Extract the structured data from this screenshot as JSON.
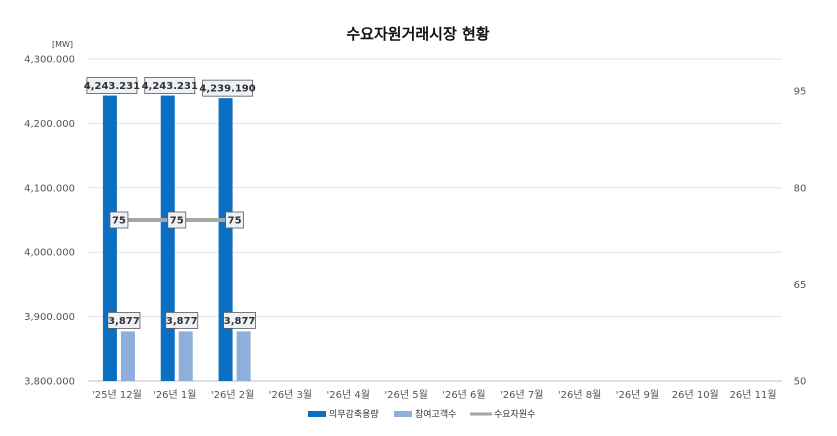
{
  "chart_data": {
    "type": "bar",
    "title": "수요자원거래시장 현황",
    "y_unit": "[MW]",
    "categories": [
      "'25년 12월",
      "'26년 1월",
      "'26년 2월",
      "'26년 3월",
      "'26년 4월",
      "'26년 5월",
      "'26년 6월",
      "'26년 7월",
      "'26년 8월",
      "'26년 9월",
      "26년 10월",
      "26년 11월"
    ],
    "ylim": [
      3800,
      4300
    ],
    "y_ticks": [
      "3,800.000",
      "3,900.000",
      "4,000.000",
      "4,100.000",
      "4,200.000",
      "4,300.000"
    ],
    "y2lim": [
      50,
      100
    ],
    "y2_ticks": [
      "50",
      "65",
      "80",
      "95"
    ],
    "grid": true,
    "legend_position": "bottom",
    "series": [
      {
        "name": "의무감축용량",
        "type": "bar",
        "axis": "left",
        "color": "#0b6fc4",
        "values": [
          4243.231,
          4243.231,
          4239.19,
          null,
          null,
          null,
          null,
          null,
          null,
          null,
          null,
          null
        ],
        "labels": [
          "4,243.231",
          "4,243.231",
          "4,239.190"
        ]
      },
      {
        "name": "참여고객수",
        "type": "bar",
        "axis": "left",
        "color": "#8eaedb",
        "values": [
          3877,
          3877,
          3877,
          null,
          null,
          null,
          null,
          null,
          null,
          null,
          null,
          null
        ],
        "labels": [
          "3,877",
          "3,877",
          "3,877"
        ]
      },
      {
        "name": "수요자원수",
        "type": "line",
        "axis": "right",
        "color": "#a6a6a6",
        "values": [
          75,
          75,
          75,
          null,
          null,
          null,
          null,
          null,
          null,
          null,
          null,
          null
        ],
        "labels": [
          "75",
          "75",
          "75"
        ]
      }
    ]
  }
}
